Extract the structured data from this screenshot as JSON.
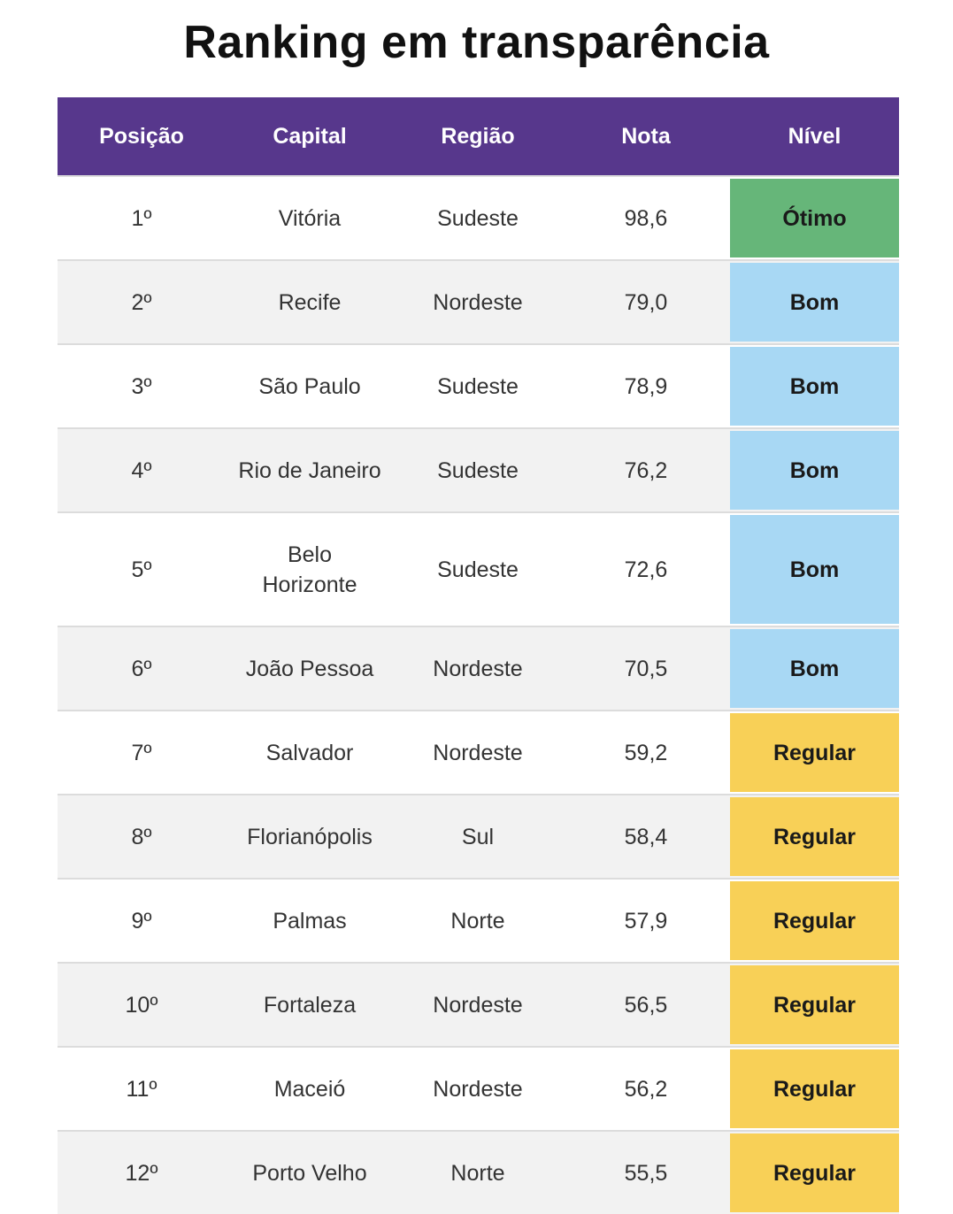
{
  "title": "Ranking em transparência",
  "headers": {
    "position": "Posição",
    "capital": "Capital",
    "region": "Região",
    "score": "Nota",
    "level": "Nível"
  },
  "colors": {
    "header": "#57378c",
    "otimo": "#66b679",
    "bom": "#a8d8f4",
    "regular": "#f8d057"
  },
  "rows": [
    {
      "position": "1º",
      "capital": "Vitória",
      "region": "Sudeste",
      "score": "98,6",
      "level": "Ótimo"
    },
    {
      "position": "2º",
      "capital": "Recife",
      "region": "Nordeste",
      "score": "79,0",
      "level": "Bom"
    },
    {
      "position": "3º",
      "capital": "São Paulo",
      "region": "Sudeste",
      "score": "78,9",
      "level": "Bom"
    },
    {
      "position": "4º",
      "capital": "Rio de Janeiro",
      "region": "Sudeste",
      "score": "76,2",
      "level": "Bom"
    },
    {
      "position": "5º",
      "capital": "Belo Horizonte",
      "region": "Sudeste",
      "score": "72,6",
      "level": "Bom"
    },
    {
      "position": "6º",
      "capital": "João Pessoa",
      "region": "Nordeste",
      "score": "70,5",
      "level": "Bom"
    },
    {
      "position": "7º",
      "capital": "Salvador",
      "region": "Nordeste",
      "score": "59,2",
      "level": "Regular"
    },
    {
      "position": "8º",
      "capital": "Florianópolis",
      "region": "Sul",
      "score": "58,4",
      "level": "Regular"
    },
    {
      "position": "9º",
      "capital": "Palmas",
      "region": "Norte",
      "score": "57,9",
      "level": "Regular"
    },
    {
      "position": "10º",
      "capital": "Fortaleza",
      "region": "Nordeste",
      "score": "56,5",
      "level": "Regular"
    },
    {
      "position": "11º",
      "capital": "Maceió",
      "region": "Nordeste",
      "score": "56,2",
      "level": "Regular"
    },
    {
      "position": "12º",
      "capital": "Porto Velho",
      "region": "Norte",
      "score": "55,5",
      "level": "Regular"
    }
  ]
}
